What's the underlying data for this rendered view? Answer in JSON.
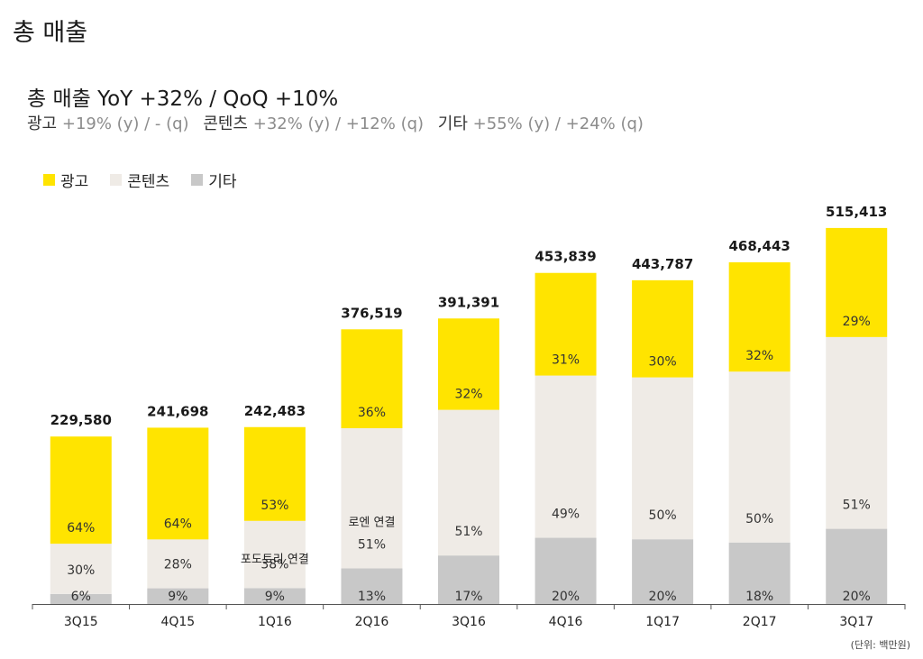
{
  "page": {
    "title": "총 매출",
    "subtitle": "총 매출 YoY +32% / QoQ +10%",
    "growth": [
      {
        "label": "광고",
        "value": "+19% (y) / - (q)"
      },
      {
        "label": "콘텐츠",
        "value": "+32% (y) / +12% (q)"
      },
      {
        "label": "기타",
        "value": "+55% (y) / +24% (q)"
      }
    ],
    "unit_note": "(단위: 백만원)"
  },
  "colors": {
    "ad": "#FFE400",
    "content": "#EFEBE6",
    "other": "#C8C8C8"
  },
  "chart_data": {
    "type": "bar",
    "stacked": true,
    "categories": [
      "3Q15",
      "4Q15",
      "1Q16",
      "2Q16",
      "3Q16",
      "4Q16",
      "1Q17",
      "2Q17",
      "3Q17"
    ],
    "totals": [
      229580,
      241698,
      242483,
      376519,
      391391,
      453839,
      443787,
      468443,
      515413
    ],
    "total_labels": [
      "229,580",
      "241,698",
      "242,483",
      "376,519",
      "391,391",
      "453,839",
      "443,787",
      "468,443",
      "515,413"
    ],
    "series": [
      {
        "name": "기타",
        "key": "other",
        "percent": [
          6,
          9,
          9,
          13,
          17,
          20,
          20,
          18,
          20
        ]
      },
      {
        "name": "콘텐츠",
        "key": "content",
        "percent": [
          30,
          28,
          38,
          51,
          51,
          49,
          50,
          50,
          51
        ]
      },
      {
        "name": "광고",
        "key": "ad",
        "percent": [
          64,
          64,
          53,
          36,
          32,
          31,
          30,
          32,
          29
        ]
      }
    ],
    "annotations": [
      {
        "category": "1Q16",
        "text": "포도트리 연결"
      },
      {
        "category": "2Q16",
        "text": "로엔 연결"
      }
    ],
    "ylim": [
      0,
      540000
    ],
    "legend": "top-left",
    "grid": false
  }
}
